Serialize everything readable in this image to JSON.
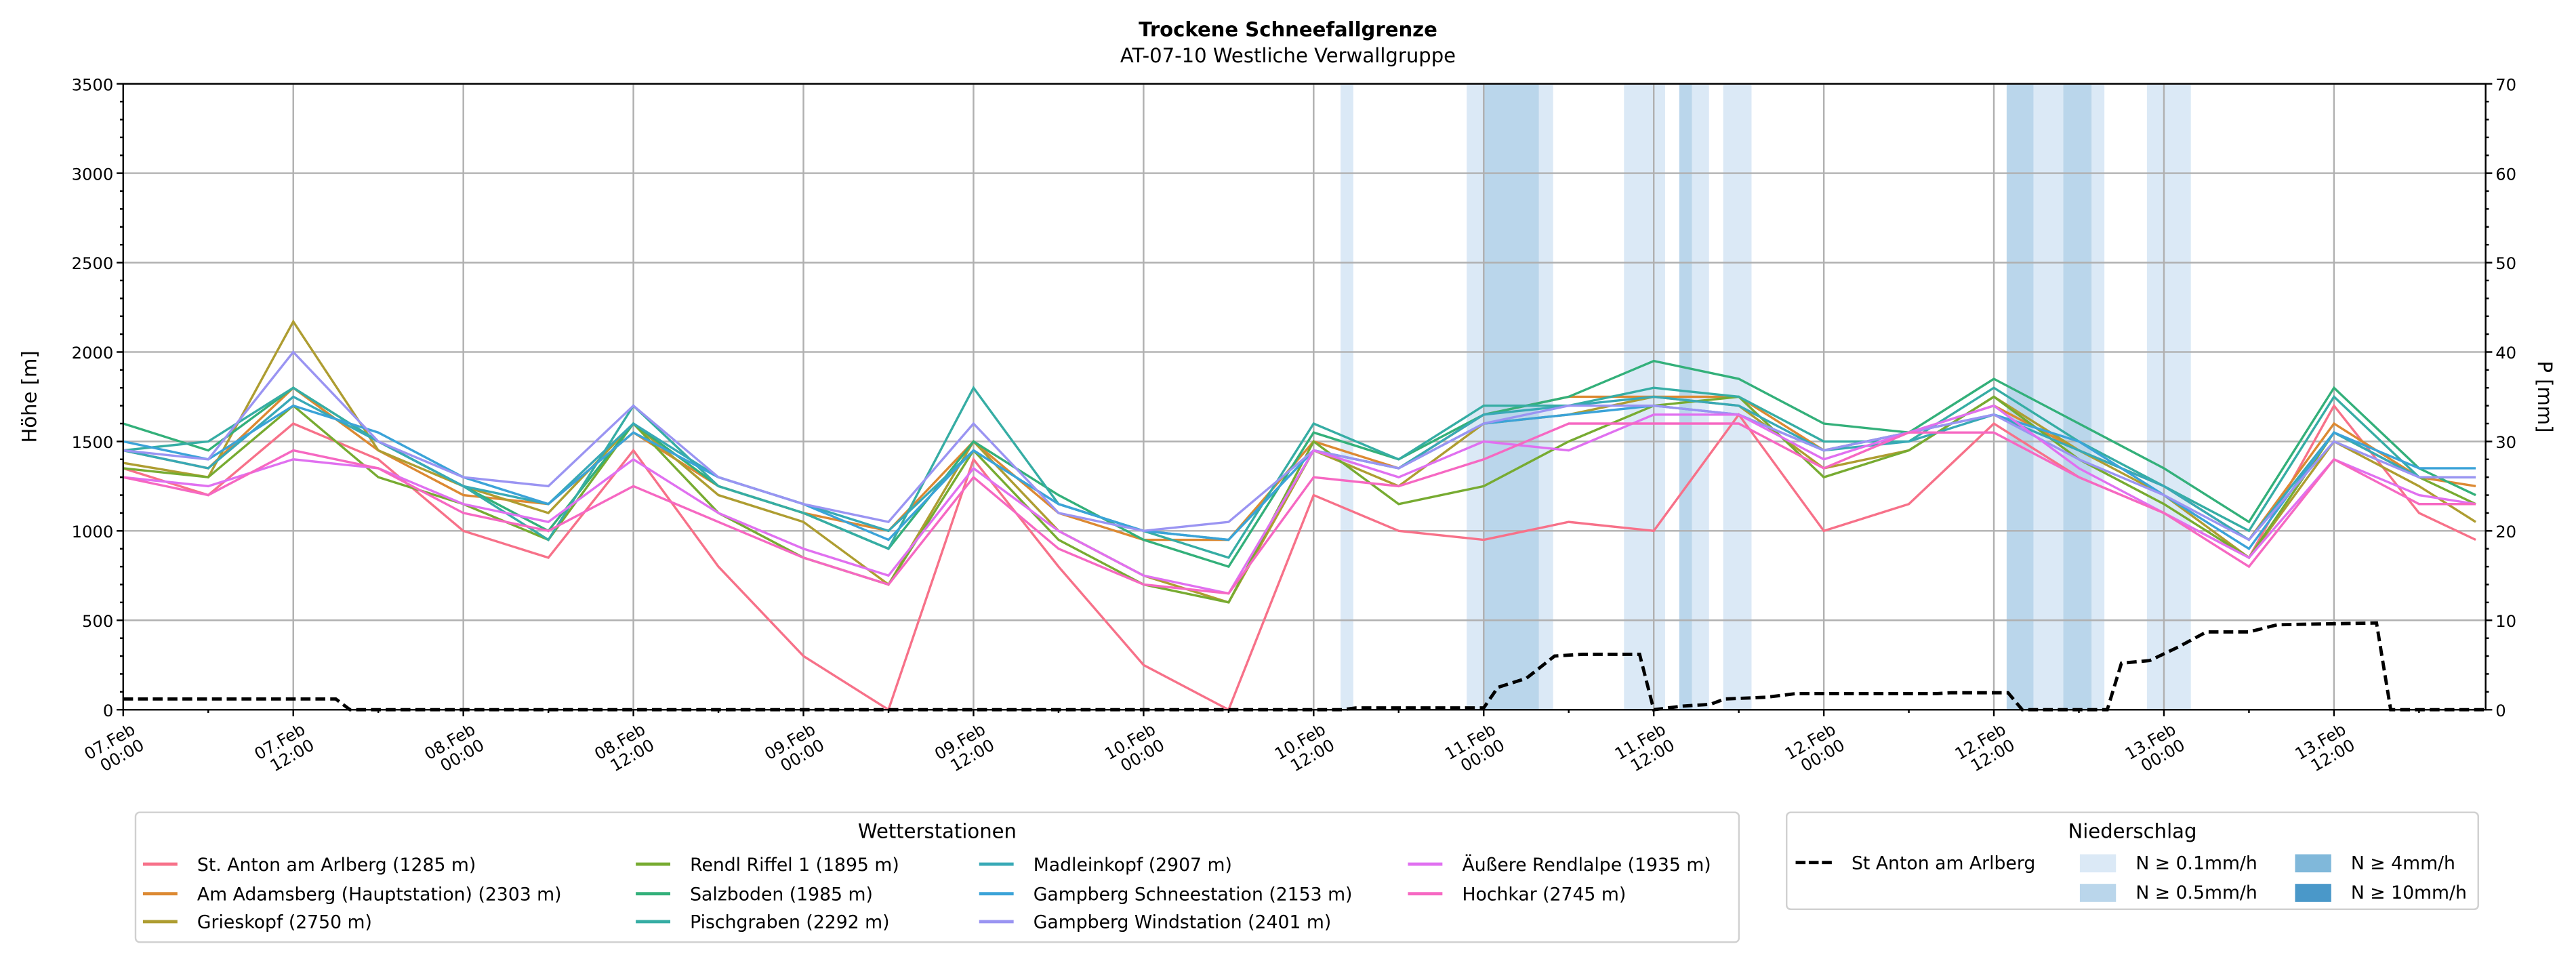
{
  "title": "Trockene Schneefallgrenze",
  "subtitle": "AT-07-10 Westliche Verwallgruppe",
  "chart_data": {
    "type": "line",
    "title": "Trockene Schneefallgrenze",
    "subtitle": "AT-07-10 Westliche Verwallgruppe",
    "ylabel": "Höhe [m]",
    "y2label": "P [mm]",
    "ylim": [
      0,
      3500
    ],
    "y2lim": [
      0,
      70
    ],
    "yticks": [
      "0",
      "500",
      "1000",
      "1500",
      "2000",
      "2500",
      "3000",
      "3500"
    ],
    "y2ticks": [
      "0",
      "10",
      "20",
      "30",
      "40",
      "50",
      "60",
      "70"
    ],
    "xlim_hours": [
      0,
      166.7
    ],
    "xticks": [
      [
        "07.Feb",
        "00:00"
      ],
      [
        "07.Feb",
        "12:00"
      ],
      [
        "08.Feb",
        "00:00"
      ],
      [
        "08.Feb",
        "12:00"
      ],
      [
        "09.Feb",
        "00:00"
      ],
      [
        "09.Feb",
        "12:00"
      ],
      [
        "10.Feb",
        "00:00"
      ],
      [
        "10.Feb",
        "12:00"
      ],
      [
        "11.Feb",
        "00:00"
      ],
      [
        "11.Feb",
        "12:00"
      ],
      [
        "12.Feb",
        "00:00"
      ],
      [
        "12.Feb",
        "12:00"
      ],
      [
        "13.Feb",
        "00:00"
      ],
      [
        "13.Feb",
        "12:00"
      ]
    ],
    "grid": true,
    "x_hours": [
      0,
      6,
      12,
      18,
      24,
      30,
      36,
      42,
      48,
      54,
      60,
      66,
      72,
      78,
      84,
      90,
      96,
      102,
      108,
      114,
      120,
      126,
      132,
      138,
      144,
      150,
      156,
      162,
      166
    ],
    "series": [
      {
        "name": "St. Anton am Arlberg (1285 m)",
        "color": "#f77189",
        "values": [
          1350,
          1200,
          1600,
          1400,
          1000,
          850,
          1450,
          800,
          300,
          0,
          1400,
          800,
          250,
          0,
          1200,
          1000,
          950,
          1050,
          1000,
          1650,
          1000,
          1150,
          1600,
          1300,
          1100,
          850,
          1700,
          1100,
          950
        ]
      },
      {
        "name": "Am Adamsberg (Hauptstation) (2303 m)",
        "color": "#dc8932",
        "values": [
          1450,
          1350,
          1800,
          1450,
          1200,
          1150,
          1550,
          1250,
          1100,
          1000,
          1500,
          1100,
          950,
          950,
          1500,
          1350,
          1650,
          1750,
          1750,
          1750,
          1450,
          1550,
          1700,
          1450,
          1250,
          950,
          1600,
          1300,
          1250
        ]
      },
      {
        "name": "Grieskopf (2750 m)",
        "color": "#ae9d31",
        "values": [
          1380,
          1300,
          2170,
          1450,
          1250,
          1100,
          1600,
          1200,
          1050,
          700,
          1500,
          1000,
          750,
          600,
          1450,
          1250,
          1600,
          1650,
          1750,
          1700,
          1350,
          1450,
          1750,
          1450,
          1200,
          850,
          1500,
          1250,
          1050
        ]
      },
      {
        "name": "Rendl Riffel 1 (1895 m)",
        "color": "#77ab31",
        "values": [
          1350,
          1300,
          1700,
          1300,
          1150,
          950,
          1600,
          1100,
          850,
          700,
          1450,
          950,
          700,
          600,
          1500,
          1150,
          1250,
          1500,
          1700,
          1750,
          1300,
          1450,
          1750,
          1400,
          1150,
          850,
          1550,
          1300,
          1150
        ]
      },
      {
        "name": "Salzboden (1985 m)",
        "color": "#33b07a",
        "values": [
          1600,
          1450,
          1800,
          1500,
          1250,
          1000,
          1600,
          1250,
          1100,
          900,
          1500,
          1200,
          950,
          800,
          1550,
          1400,
          1650,
          1750,
          1950,
          1850,
          1600,
          1550,
          1850,
          1600,
          1350,
          1050,
          1800,
          1350,
          1200
        ]
      },
      {
        "name": "Pischgraben (2292 m)",
        "color": "#36ada4",
        "values": [
          1450,
          1500,
          1800,
          1500,
          1250,
          950,
          1700,
          1250,
          1100,
          900,
          1800,
          1150,
          1000,
          850,
          1600,
          1400,
          1700,
          1700,
          1800,
          1750,
          1500,
          1500,
          1800,
          1500,
          1250,
          1000,
          1750,
          1300,
          1300
        ]
      },
      {
        "name": "Madleinkopf (2907 m)",
        "color": "#38a9b6",
        "values": [
          1450,
          1350,
          1750,
          1500,
          1250,
          1150,
          1600,
          1300,
          1150,
          1000,
          1450,
          1150,
          1000,
          950,
          1450,
          1350,
          1650,
          1700,
          1750,
          1700,
          1450,
          1500,
          1650,
          1450,
          1250,
          950,
          1550,
          1300,
          1300
        ]
      },
      {
        "name": "Gampberg Schneestation (2153 m)",
        "color": "#3ba3d8",
        "values": [
          1500,
          1400,
          1700,
          1550,
          1300,
          1150,
          1550,
          1300,
          1150,
          950,
          1450,
          1150,
          1000,
          950,
          1450,
          1350,
          1600,
          1650,
          1700,
          1650,
          1450,
          1550,
          1650,
          1500,
          1200,
          900,
          1550,
          1350,
          1350
        ]
      },
      {
        "name": "Gampberg Windstation (2401 m)",
        "color": "#9a94f2",
        "values": [
          1450,
          1400,
          2000,
          1500,
          1300,
          1250,
          1700,
          1300,
          1150,
          1050,
          1600,
          1100,
          1000,
          1050,
          1450,
          1350,
          1600,
          1700,
          1700,
          1650,
          1450,
          1550,
          1650,
          1400,
          1200,
          950,
          1500,
          1300,
          1300
        ]
      },
      {
        "name": "Äußere Rendlalpe (1935 m)",
        "color": "#e070f0",
        "values": [
          1300,
          1250,
          1400,
          1350,
          1150,
          1050,
          1400,
          1100,
          900,
          750,
          1350,
          1000,
          750,
          650,
          1450,
          1300,
          1500,
          1450,
          1650,
          1650,
          1400,
          1550,
          1700,
          1350,
          1100,
          850,
          1400,
          1200,
          1150
        ]
      },
      {
        "name": "Hochkar (2745 m)",
        "color": "#f668c2",
        "values": [
          1300,
          1200,
          1450,
          1350,
          1100,
          1000,
          1250,
          1050,
          850,
          700,
          1300,
          900,
          700,
          650,
          1300,
          1250,
          1400,
          1600,
          1600,
          1600,
          1350,
          1550,
          1550,
          1300,
          1100,
          800,
          1400,
          1150,
          1150
        ]
      }
    ],
    "precip_series": {
      "name": "St Anton am Arlberg",
      "points": [
        [
          0,
          1.2
        ],
        [
          15,
          1.2
        ],
        [
          16,
          0
        ],
        [
          86,
          0
        ],
        [
          87,
          0.2
        ],
        [
          96,
          0.2
        ],
        [
          97,
          2.5
        ],
        [
          99,
          3.5
        ],
        [
          101,
          6
        ],
        [
          103,
          6.2
        ],
        [
          107,
          6.2
        ],
        [
          108,
          0
        ],
        [
          110,
          0.4
        ],
        [
          112,
          0.6
        ],
        [
          113,
          1.2
        ],
        [
          116,
          1.4
        ],
        [
          118,
          1.8
        ],
        [
          128,
          1.8
        ],
        [
          129,
          1.9
        ],
        [
          133,
          1.9
        ],
        [
          134,
          0
        ],
        [
          140,
          0
        ],
        [
          141,
          5.2
        ],
        [
          143,
          5.5
        ],
        [
          145,
          7
        ],
        [
          147,
          8.7
        ],
        [
          150,
          8.7
        ],
        [
          152,
          9.5
        ],
        [
          159,
          9.7
        ],
        [
          160,
          0
        ],
        [
          166.7,
          0
        ]
      ]
    },
    "precip_bands": [
      {
        "from": 85.9,
        "to": 86.8,
        "level": "0.1"
      },
      {
        "from": 94.8,
        "to": 96.0,
        "level": "0.1"
      },
      {
        "from": 96.0,
        "to": 99.9,
        "level": "0.5"
      },
      {
        "from": 99.9,
        "to": 100.9,
        "level": "0.1"
      },
      {
        "from": 105.9,
        "to": 108.8,
        "level": "0.1"
      },
      {
        "from": 109.8,
        "to": 110.7,
        "level": "0.5"
      },
      {
        "from": 110.7,
        "to": 111.9,
        "level": "0.1"
      },
      {
        "from": 112.9,
        "to": 114.9,
        "level": "0.1"
      },
      {
        "from": 132.9,
        "to": 134.8,
        "level": "0.5"
      },
      {
        "from": 134.8,
        "to": 136.9,
        "level": "0.1"
      },
      {
        "from": 136.9,
        "to": 138.9,
        "level": "0.5"
      },
      {
        "from": 138.9,
        "to": 139.8,
        "level": "0.1"
      },
      {
        "from": 142.8,
        "to": 145.9,
        "level": "0.1"
      }
    ],
    "legend_stations_title": "Wetterstationen",
    "legend_precip_title": "Niederschlag",
    "precip_levels": [
      {
        "key": "0.1",
        "label": "N ≥ 0.1mm/h",
        "color": "#dbe9f6"
      },
      {
        "key": "0.5",
        "label": "N ≥ 0.5mm/h",
        "color": "#bad6eb"
      },
      {
        "key": "4",
        "label": "N ≥ 4mm/h",
        "color": "#80b8da"
      },
      {
        "key": "10",
        "label": "N ≥ 10mm/h",
        "color": "#4a98c9"
      }
    ]
  }
}
